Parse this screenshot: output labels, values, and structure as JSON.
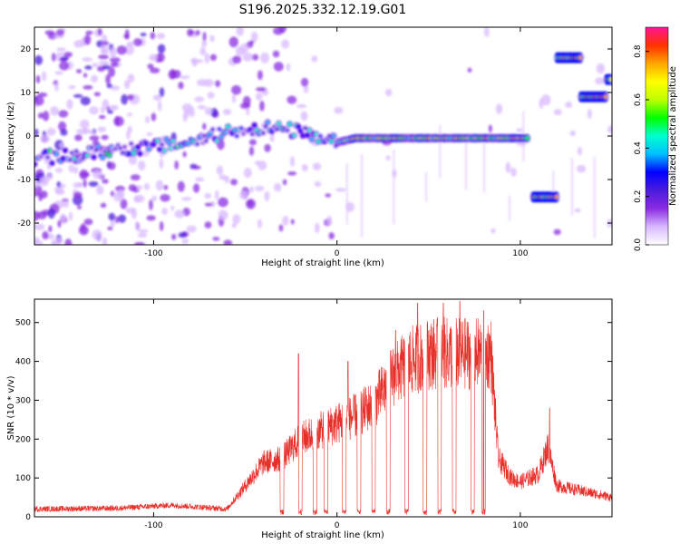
{
  "figure_title": "S196.2025.332.12.19.G01",
  "chart_data": [
    {
      "type": "heatmap",
      "title": "S196.2025.332.12.19.G01",
      "xlabel": "Height of straight line (km)",
      "ylabel": "Frequency (Hz)",
      "xlim": [
        -165,
        150
      ],
      "ylim": [
        -25,
        25
      ],
      "xticks": [
        -100,
        0,
        100
      ],
      "yticks": [
        -20,
        -10,
        0,
        10,
        20
      ],
      "colorbar": {
        "label": "Normalized spectral amplitude",
        "range": [
          0.0,
          0.9
        ],
        "ticks": [
          0.0,
          0.2,
          0.4,
          0.6,
          0.8
        ],
        "colors": [
          "#ffffff",
          "#d8b8ff",
          "#8a2be2",
          "#4b1bdc",
          "#0000ff",
          "#00bfff",
          "#00ffd0",
          "#00ff00",
          "#bfff00",
          "#ffff00",
          "#ffa500",
          "#ff3000",
          "#ff1493"
        ]
      },
      "ridge": [
        {
          "x": -160,
          "f": -5
        },
        {
          "x": -140,
          "f": -4.5
        },
        {
          "x": -120,
          "f": -3
        },
        {
          "x": -100,
          "f": -2.5
        },
        {
          "x": -80,
          "f": -1.5
        },
        {
          "x": -60,
          "f": 1
        },
        {
          "x": -40,
          "f": 2
        },
        {
          "x": -20,
          "f": 1
        },
        {
          "x": -10,
          "f": -1
        },
        {
          "x": 0,
          "f": -1.5
        },
        {
          "x": 10,
          "f": -0.5
        },
        {
          "x": 50,
          "f": -0.5
        },
        {
          "x": 80,
          "f": -0.5
        },
        {
          "x": 105,
          "f": -0.5
        }
      ],
      "segments": [
        {
          "x0": 107,
          "x1": 120,
          "f": -14
        },
        {
          "x0": 120,
          "x1": 133,
          "f": 18
        },
        {
          "x0": 133,
          "x1": 147,
          "f": 9
        },
        {
          "x0": 147,
          "x1": 150,
          "f": 13
        }
      ]
    },
    {
      "type": "line",
      "xlabel": "Height of straight line (km)",
      "ylabel": "SNR (10 * v/v)",
      "xlim": [
        -165,
        150
      ],
      "ylim": [
        0,
        560
      ],
      "xticks": [
        -100,
        0,
        100
      ],
      "yticks": [
        0,
        100,
        200,
        300,
        400,
        500
      ],
      "color": "#e8302a",
      "envelope": [
        {
          "x": -165,
          "y": 20
        },
        {
          "x": -120,
          "y": 22
        },
        {
          "x": -90,
          "y": 30
        },
        {
          "x": -75,
          "y": 25
        },
        {
          "x": -60,
          "y": 20
        },
        {
          "x": -50,
          "y": 80
        },
        {
          "x": -40,
          "y": 140
        },
        {
          "x": -30,
          "y": 150
        },
        {
          "x": -20,
          "y": 200
        },
        {
          "x": -10,
          "y": 220
        },
        {
          "x": 0,
          "y": 240
        },
        {
          "x": 10,
          "y": 260
        },
        {
          "x": 20,
          "y": 290
        },
        {
          "x": 30,
          "y": 360
        },
        {
          "x": 40,
          "y": 400
        },
        {
          "x": 50,
          "y": 420
        },
        {
          "x": 60,
          "y": 420
        },
        {
          "x": 70,
          "y": 420
        },
        {
          "x": 80,
          "y": 420
        },
        {
          "x": 84,
          "y": 420
        },
        {
          "x": 88,
          "y": 150
        },
        {
          "x": 95,
          "y": 100
        },
        {
          "x": 100,
          "y": 90
        },
        {
          "x": 110,
          "y": 110
        },
        {
          "x": 115,
          "y": 180
        },
        {
          "x": 120,
          "y": 80
        },
        {
          "x": 130,
          "y": 70
        },
        {
          "x": 140,
          "y": 60
        },
        {
          "x": 150,
          "y": 50
        }
      ],
      "dropouts": [
        -30,
        -20,
        -12,
        -6,
        4,
        12,
        20,
        28,
        38,
        48,
        56,
        64,
        74,
        80
      ],
      "spikes": [
        {
          "x": -21,
          "y": 420
        },
        {
          "x": 6,
          "y": 400
        },
        {
          "x": 32,
          "y": 480
        },
        {
          "x": 44,
          "y": 550
        },
        {
          "x": 58,
          "y": 550
        },
        {
          "x": 67,
          "y": 555
        },
        {
          "x": 80,
          "y": 530
        },
        {
          "x": 116,
          "y": 280
        }
      ]
    }
  ]
}
